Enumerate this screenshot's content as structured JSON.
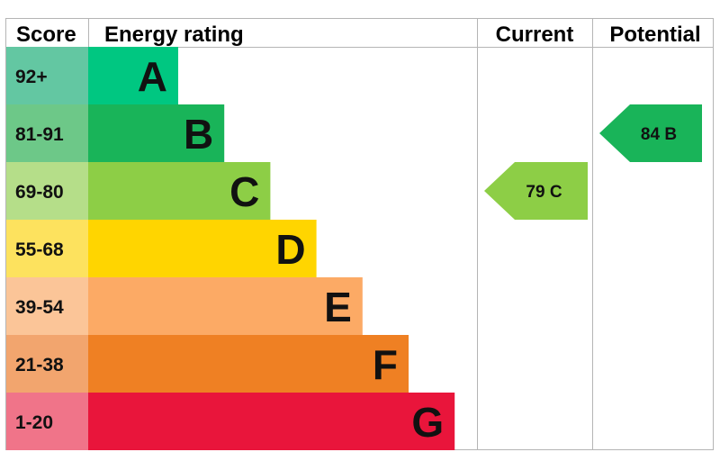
{
  "headers": {
    "score": "Score",
    "energy_rating": "Energy rating",
    "current": "Current",
    "potential": "Potential"
  },
  "chart_data": {
    "type": "bar",
    "bands": [
      {
        "score": "92+",
        "letter": "A",
        "color": "#00c781",
        "score_bg": "#63c7a2"
      },
      {
        "score": "81-91",
        "letter": "B",
        "color": "#19b459",
        "score_bg": "#6dc888"
      },
      {
        "score": "69-80",
        "letter": "C",
        "color": "#8dce46",
        "score_bg": "#b5de89"
      },
      {
        "score": "55-68",
        "letter": "D",
        "color": "#ffd500",
        "score_bg": "#fde25e"
      },
      {
        "score": "39-54",
        "letter": "E",
        "color": "#fcaa65",
        "score_bg": "#fbc598"
      },
      {
        "score": "21-38",
        "letter": "F",
        "color": "#ef8023",
        "score_bg": "#f2a56e"
      },
      {
        "score": "1-20",
        "letter": "G",
        "color": "#e9153b",
        "score_bg": "#f07489"
      }
    ],
    "current": {
      "value": 79,
      "letter": "C",
      "label": "79  C",
      "color": "#8dce46"
    },
    "potential": {
      "value": 84,
      "letter": "B",
      "label": "84  B",
      "color": "#19b459"
    }
  }
}
